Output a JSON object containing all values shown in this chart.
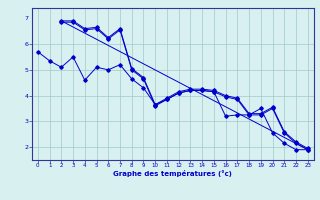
{
  "xlabel": "Graphe des températures (°c)",
  "bg_color": "#d8f0f0",
  "grid_color": "#a0c8c8",
  "line_color": "#0000cc",
  "axis_color": "#333399",
  "xlim": [
    -0.5,
    23.5
  ],
  "ylim": [
    1.5,
    7.4
  ],
  "xticks": [
    0,
    1,
    2,
    3,
    4,
    5,
    6,
    7,
    8,
    9,
    10,
    11,
    12,
    13,
    14,
    15,
    16,
    17,
    18,
    19,
    20,
    21,
    22,
    23
  ],
  "yticks": [
    2,
    3,
    4,
    5,
    6
  ],
  "ytick_extra_label": 7,
  "ytick_extra_pos": 7.0,
  "line1_x": [
    0,
    1,
    2,
    3,
    4,
    5,
    6,
    7,
    8,
    9,
    10,
    11,
    12,
    13,
    14,
    15,
    16,
    17,
    18,
    19,
    20,
    21,
    22,
    23
  ],
  "line1_y": [
    5.7,
    5.35,
    5.1,
    5.5,
    4.6,
    5.1,
    5.0,
    5.2,
    4.65,
    4.3,
    3.65,
    3.85,
    4.1,
    4.2,
    4.2,
    4.15,
    3.2,
    3.25,
    3.25,
    3.5,
    2.55,
    2.15,
    1.9,
    1.9
  ],
  "line2_x": [
    2,
    3,
    4,
    5,
    6,
    7,
    8,
    9,
    10,
    11,
    12,
    13,
    14,
    15,
    16,
    17,
    18,
    19,
    20,
    21,
    22,
    23
  ],
  "line2_y": [
    6.85,
    6.85,
    6.55,
    6.6,
    6.2,
    6.55,
    5.0,
    4.65,
    3.6,
    3.85,
    4.1,
    4.2,
    4.2,
    4.15,
    3.95,
    3.85,
    3.25,
    3.25,
    3.5,
    2.55,
    2.15,
    1.9
  ],
  "line3_x": [
    2,
    3,
    4,
    5,
    6,
    7,
    8,
    9,
    10,
    11,
    12,
    13,
    14,
    15,
    16,
    17,
    18,
    19,
    20,
    21,
    22,
    23
  ],
  "line3_y": [
    6.9,
    6.9,
    6.6,
    6.65,
    6.25,
    6.6,
    5.05,
    4.7,
    3.65,
    3.9,
    4.15,
    4.25,
    4.25,
    4.2,
    4.0,
    3.9,
    3.3,
    3.3,
    3.55,
    2.6,
    2.2,
    1.95
  ],
  "line4_x": [
    2,
    23
  ],
  "line4_y": [
    6.9,
    1.9
  ]
}
